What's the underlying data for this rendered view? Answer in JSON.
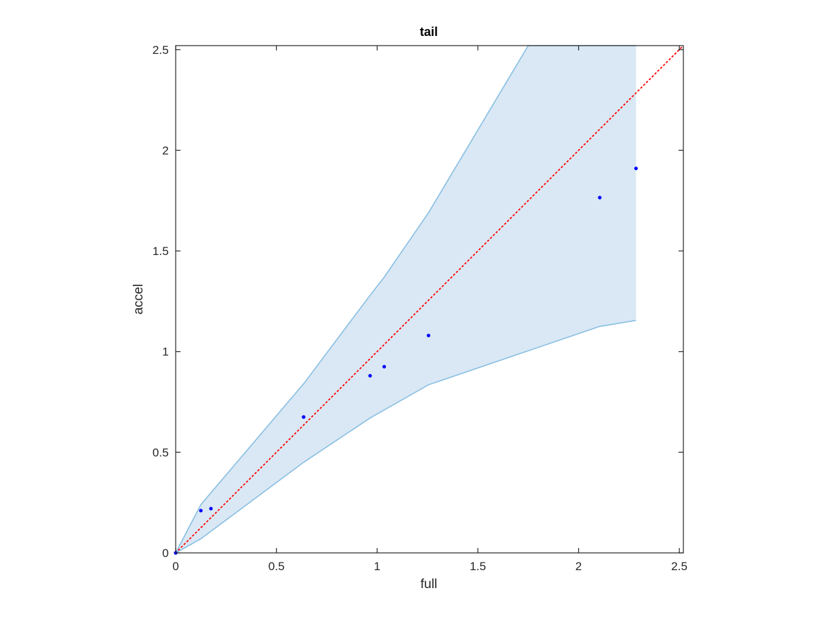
{
  "chart_data": {
    "type": "scatter",
    "title": "tail",
    "xlabel": "full",
    "ylabel": "accel",
    "xlim": [
      0,
      2.52
    ],
    "ylim": [
      0,
      2.52
    ],
    "xticks": [
      "0",
      "0.5",
      "1",
      "1.5",
      "2",
      "2.5"
    ],
    "yticks": [
      "0",
      "0.5",
      "1",
      "1.5",
      "2",
      "2.5"
    ],
    "grid": false,
    "points": {
      "x": [
        0.0,
        0.125,
        0.175,
        0.635,
        0.965,
        1.035,
        1.255,
        2.105,
        2.285
      ],
      "y": [
        0.0,
        0.21,
        0.22,
        0.675,
        0.88,
        0.925,
        1.08,
        1.765,
        1.91
      ]
    },
    "band": {
      "upper": {
        "x": [
          0.0,
          0.125,
          0.635,
          0.965,
          1.035,
          1.255,
          1.75,
          2.105,
          2.285
        ],
        "y": [
          0.0,
          0.24,
          0.84,
          1.28,
          1.37,
          1.69,
          2.52,
          2.52,
          2.52
        ]
      },
      "lower": {
        "x": [
          0.0,
          0.125,
          0.635,
          0.965,
          1.035,
          1.255,
          2.105,
          2.285
        ],
        "y": [
          0.0,
          0.07,
          0.45,
          0.67,
          0.71,
          0.835,
          1.125,
          1.155
        ]
      }
    },
    "reference_line": {
      "x": [
        0,
        2.52
      ],
      "y": [
        0,
        2.52
      ],
      "style": "dotted"
    },
    "colors": {
      "points": "#0000ff",
      "band_fill": "#d9e8f4",
      "band_edge": "#88bee2",
      "reference": "#ff0000",
      "axes": "#262626"
    }
  }
}
